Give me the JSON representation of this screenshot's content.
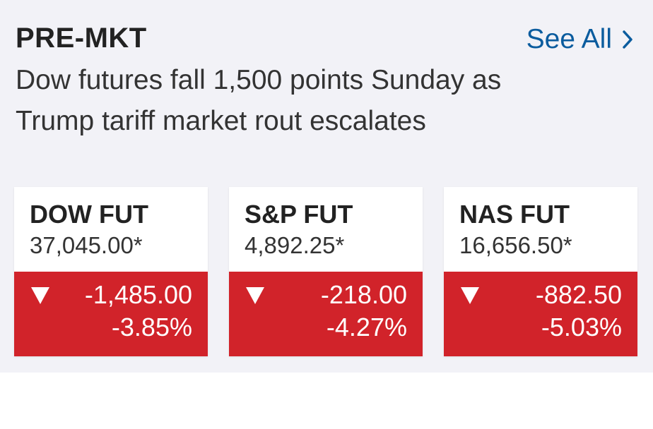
{
  "header": {
    "title": "PRE-MKT",
    "link": "See All"
  },
  "headline": {
    "lines": [
      "Dow futures fall 1,500 points Sunday as",
      "Trump tariff market rout escalates"
    ]
  },
  "cards": [
    {
      "name": "DOW FUT",
      "price": "37,045.00*",
      "change": "-1,485.00",
      "percent": "-3.85%"
    },
    {
      "name": "S&P FUT",
      "price": "4,892.25*",
      "change": "-218.00",
      "percent": "-4.27%"
    },
    {
      "name": "NAS FUT",
      "price": "16,656.50*",
      "change": "-882.50",
      "percent": "-5.03%"
    }
  ]
}
